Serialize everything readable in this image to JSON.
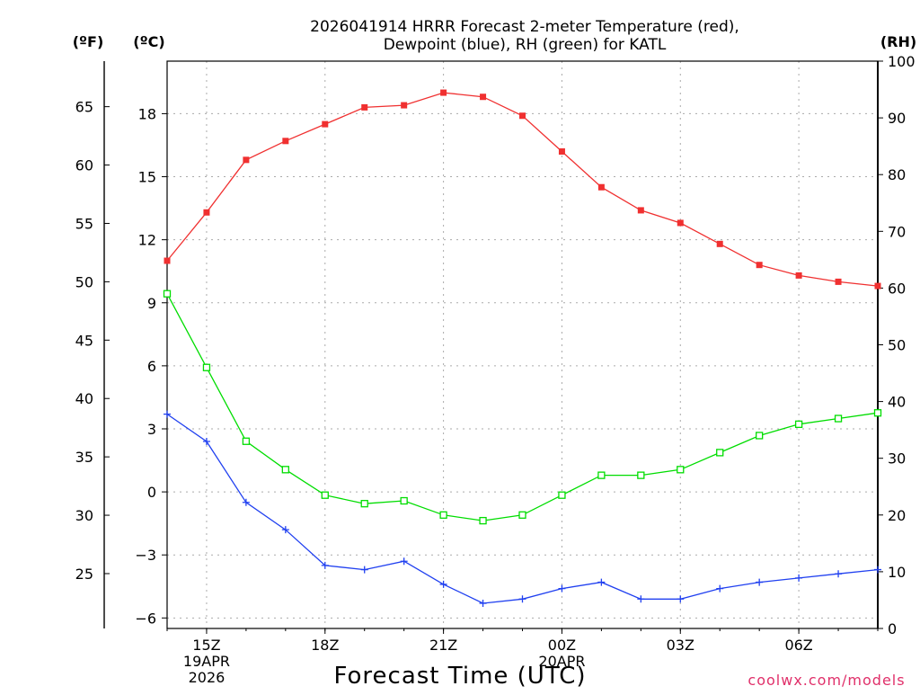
{
  "chart_data": {
    "type": "line",
    "title_line1": "2026041914 HRRR Forecast 2-meter Temperature (red),",
    "title_line2": "Dewpoint (blue), RH (green) for KATL",
    "xlabel": "Forecast Time (UTC)",
    "credit": "coolwx.com/models",
    "units": {
      "fahrenheit": "(ºF)",
      "celsius": "(ºC)",
      "rh": "(RH)"
    },
    "x_hours": [
      14,
      15,
      16,
      17,
      18,
      19,
      20,
      21,
      22,
      23,
      24,
      25,
      26,
      27,
      28,
      29,
      30,
      31,
      32
    ],
    "x_tick_hours": [
      15,
      18,
      21,
      24,
      27,
      30
    ],
    "x_tick_labels": [
      "15Z",
      "18Z",
      "21Z",
      "00Z",
      "03Z",
      "06Z"
    ],
    "x_date_labels": [
      {
        "hour": 15,
        "line1": "19APR",
        "line2": "2026"
      },
      {
        "hour": 24,
        "line1": "20APR",
        "line2": ""
      }
    ],
    "xlim": [
      14,
      32
    ],
    "celsius_ylim": [
      -6.5,
      20.5
    ],
    "celsius_ticks": [
      -6,
      -3,
      0,
      3,
      6,
      9,
      12,
      15,
      18
    ],
    "celsius_tick_labels": [
      "−6",
      "−3",
      "0",
      "3",
      "6",
      "9",
      "12",
      "15",
      "18"
    ],
    "fahrenheit_ticks": [
      25,
      30,
      35,
      40,
      45,
      50,
      55,
      60,
      65
    ],
    "fahrenheit_tick_labels": [
      "25",
      "30",
      "35",
      "40",
      "45",
      "50",
      "55",
      "60",
      "65"
    ],
    "rh_ylim": [
      0,
      100
    ],
    "rh_ticks": [
      0,
      10,
      20,
      30,
      40,
      50,
      60,
      70,
      80,
      90,
      100
    ],
    "rh_tick_labels": [
      "0",
      "10",
      "20",
      "30",
      "40",
      "50",
      "60",
      "70",
      "80",
      "90",
      "100"
    ],
    "series": [
      {
        "name": "2-meter Temperature",
        "axis": "celsius",
        "color": "#f03030",
        "marker": "filled-square",
        "values": [
          11.0,
          13.3,
          15.8,
          16.7,
          17.5,
          18.3,
          18.4,
          19.0,
          18.8,
          17.9,
          16.2,
          14.5,
          13.4,
          12.8,
          11.8,
          10.8,
          10.3,
          10.0,
          9.8
        ]
      },
      {
        "name": "Dewpoint",
        "axis": "celsius",
        "color": "#2040f0",
        "marker": "plus",
        "values": [
          3.7,
          2.4,
          -0.5,
          -1.8,
          -3.5,
          -3.7,
          -3.3,
          -4.4,
          -5.3,
          -5.1,
          -4.6,
          -4.3,
          -5.1,
          -5.1,
          -4.6,
          -4.3,
          -4.1,
          -3.9,
          -3.7
        ]
      },
      {
        "name": "RH",
        "axis": "rh",
        "color": "#00dd00",
        "marker": "open-square",
        "values": [
          59,
          46,
          33,
          28,
          23.5,
          22,
          22.5,
          20,
          19,
          20,
          23.5,
          27,
          27,
          28,
          31,
          34,
          36,
          37,
          38
        ]
      }
    ]
  }
}
